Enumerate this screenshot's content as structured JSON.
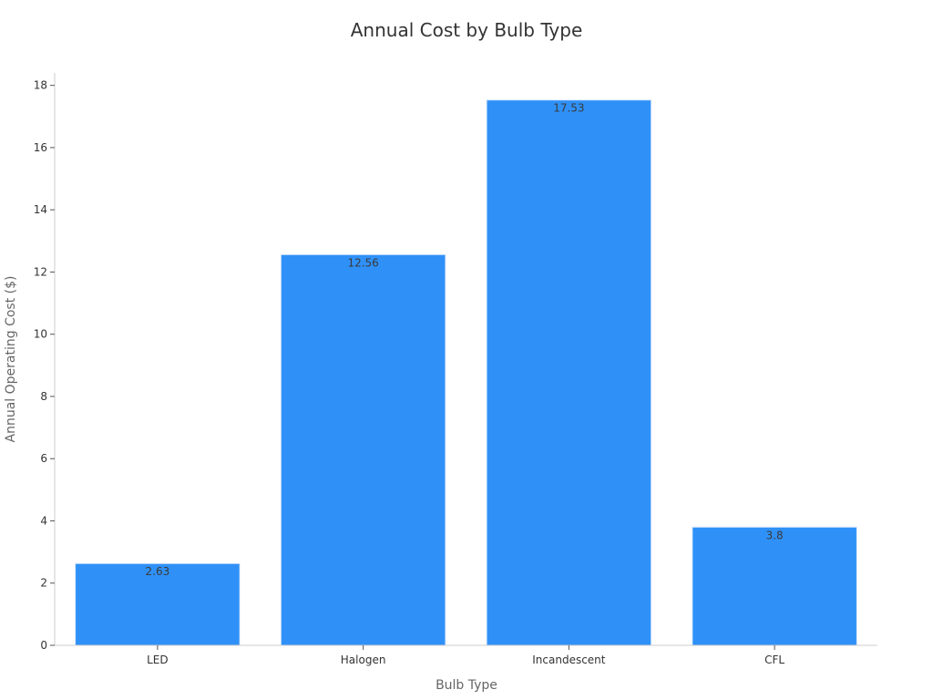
{
  "chart_data": {
    "type": "bar",
    "title": "Annual Cost by Bulb Type",
    "xlabel": "Bulb Type",
    "ylabel": "Annual Operating Cost ($)",
    "categories": [
      "LED",
      "Halogen",
      "Incandescent",
      "CFL"
    ],
    "values": [
      2.63,
      12.56,
      17.53,
      3.8
    ],
    "data_labels": [
      "2.63",
      "12.56",
      "17.53",
      "3.8"
    ],
    "ylim": [
      0,
      18.4
    ],
    "yticks": [
      0,
      2,
      4,
      6,
      8,
      10,
      12,
      14,
      16,
      18
    ],
    "grid": false,
    "legend": "none",
    "bar_color": "#2f91f8"
  }
}
